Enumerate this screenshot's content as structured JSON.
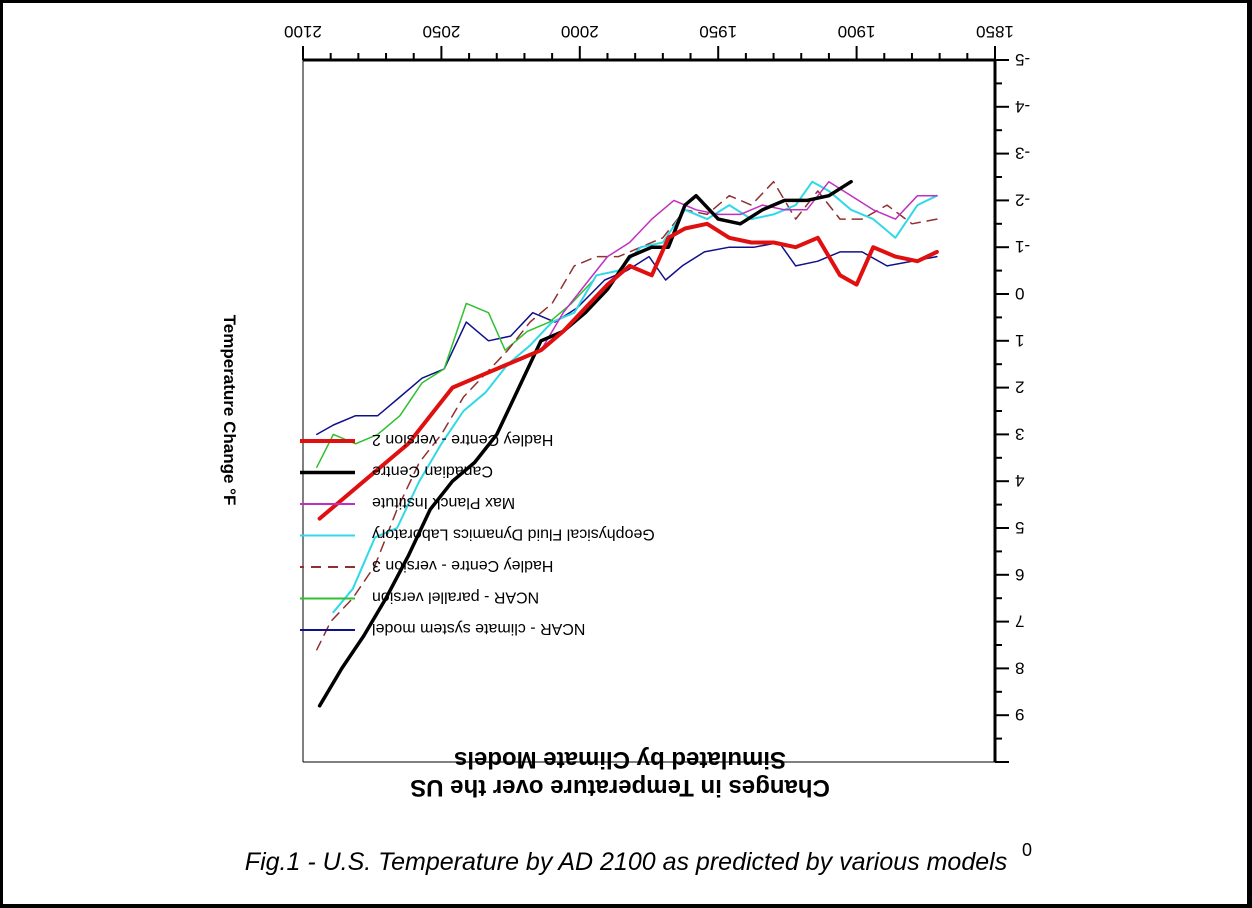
{
  "caption": "Fig.1 - U.S. Temperature by AD 2100 as predicted by various models",
  "page_number": "0",
  "chart_data": {
    "type": "line",
    "title": "Changes in Temperature over the US",
    "subtitle": "Simulated by Climate Models",
    "ylabel": "Temperature Change °F",
    "xlabel": "",
    "xlim": [
      1850,
      2100
    ],
    "ylim": [
      -5,
      10
    ],
    "x_ticks": [
      "1850",
      "1900",
      "1950",
      "2000",
      "2050",
      "2100"
    ],
    "y_ticks": [
      "-5",
      "-4",
      "-3",
      "-2",
      "-1",
      "0",
      "1",
      "2",
      "3",
      "4",
      "5",
      "6",
      "7",
      "8",
      "9"
    ],
    "x_tick_values": [
      1850,
      1900,
      1950,
      2000,
      2050,
      2100
    ],
    "y_tick_values": [
      -5,
      -4,
      -3,
      -2,
      -1,
      0,
      1,
      2,
      3,
      4,
      5,
      6,
      7,
      8,
      9
    ],
    "grid": false,
    "legend_position": "lower-left",
    "series": [
      {
        "name": "NCAR - climate system model",
        "color": "#10108a",
        "dash": "",
        "width": 1.5,
        "x": [
          1871,
          1880,
          1889,
          1898,
          1906,
          1914,
          1922,
          1928,
          1937,
          1946,
          1955,
          1963,
          1969,
          1975,
          1983,
          1991,
          2001,
          2009,
          2017,
          2025,
          2033,
          2041,
          2049,
          2057,
          2065,
          2073,
          2081,
          2089,
          2095
        ],
        "y": [
          -0.8,
          -0.7,
          -0.6,
          -0.9,
          -0.9,
          -0.7,
          -0.6,
          -1.1,
          -1.0,
          -1.0,
          -0.9,
          -0.6,
          -0.3,
          -0.8,
          -0.5,
          -0.3,
          0.3,
          0.6,
          0.4,
          0.9,
          1.0,
          0.6,
          1.6,
          1.8,
          2.2,
          2.6,
          2.6,
          2.8,
          3.0
        ]
      },
      {
        "name": "NCAR - parallel version",
        "color": "#30c030",
        "dash": "",
        "width": 1.5,
        "x": [
          1995,
          2003,
          2011,
          2019,
          2027,
          2033,
          2041,
          2049,
          2057,
          2065,
          2073,
          2081,
          2089,
          2095
        ],
        "y": [
          -0.3,
          0.2,
          0.6,
          0.8,
          1.2,
          0.4,
          0.2,
          1.6,
          1.9,
          2.6,
          3.0,
          3.2,
          3.0,
          3.7
        ]
      },
      {
        "name": "Hadley Centre - version 3",
        "color": "#903030",
        "dash": "10,7",
        "width": 1.5,
        "x": [
          1871,
          1880,
          1889,
          1898,
          1906,
          1914,
          1922,
          1930,
          1938,
          1946,
          1954,
          1962,
          1970,
          1978,
          1986,
          1994,
          2002,
          2010,
          2018,
          2026,
          2034,
          2042,
          2050,
          2058,
          2066,
          2074,
          2082,
          2090,
          2095
        ],
        "y": [
          -1.6,
          -1.5,
          -1.9,
          -1.6,
          -1.6,
          -2.2,
          -1.6,
          -2.4,
          -1.9,
          -2.1,
          -1.7,
          -1.8,
          -1.2,
          -1.0,
          -0.8,
          -0.8,
          -0.6,
          0.2,
          0.6,
          1.2,
          1.7,
          2.2,
          3.0,
          3.6,
          4.6,
          5.8,
          6.5,
          7.0,
          7.6
        ]
      },
      {
        "name": "Geophysical Fluid Dynamics Laboratory",
        "color": "#30d8e8",
        "dash": "",
        "width": 2,
        "x": [
          1871,
          1878,
          1886,
          1894,
          1902,
          1910,
          1916,
          1922,
          1930,
          1938,
          1946,
          1954,
          1962,
          1970,
          1978,
          1986,
          1994,
          2002,
          2010,
          2018,
          2026,
          2034,
          2042,
          2050,
          2058,
          2066,
          2074,
          2082,
          2089
        ],
        "y": [
          -2.1,
          -1.9,
          -1.2,
          -1.6,
          -1.8,
          -2.2,
          -2.4,
          -1.9,
          -1.7,
          -1.6,
          -1.9,
          -1.6,
          -1.8,
          -1.1,
          -1.0,
          -0.5,
          -0.4,
          0.4,
          0.6,
          1.1,
          1.5,
          2.1,
          2.5,
          3.2,
          4.0,
          5.0,
          5.2,
          6.3,
          6.8
        ]
      },
      {
        "name": "Max Planck Institute",
        "color": "#c030c0",
        "dash": "",
        "width": 1.5,
        "x": [
          1871,
          1878,
          1886,
          1894,
          1902,
          1910,
          1918,
          1926,
          1934,
          1942,
          1950,
          1958,
          1966,
          1974,
          1982,
          1990,
          1998,
          2006,
          2014,
          2022,
          2030
        ],
        "y": [
          -2.1,
          -2.1,
          -1.6,
          -1.8,
          -2.1,
          -2.4,
          -1.8,
          -1.8,
          -1.9,
          -1.7,
          -1.7,
          -1.8,
          -2.0,
          -1.6,
          -1.1,
          -0.8,
          -0.2,
          0.4,
          1.2,
          1.4,
          1.6
        ]
      },
      {
        "name": "Canadian Centre",
        "color": "#000000",
        "dash": "",
        "width": 3.5,
        "x": [
          1902,
          1910,
          1918,
          1926,
          1934,
          1942,
          1950,
          1958,
          1962,
          1968,
          1974,
          1982,
          1990,
          1998,
          2006,
          2014,
          2022,
          2030,
          2038,
          2046,
          2054,
          2062,
          2070,
          2078,
          2086,
          2094
        ],
        "y": [
          -2.4,
          -2.1,
          -2.0,
          -2.0,
          -1.8,
          -1.5,
          -1.6,
          -2.1,
          -1.9,
          -1.0,
          -1.0,
          -0.8,
          -0.1,
          0.4,
          0.8,
          1.0,
          2.0,
          3.0,
          3.6,
          4.0,
          4.6,
          5.6,
          6.5,
          7.3,
          8.0,
          8.8
        ]
      },
      {
        "name": "Hadley Centre - version 2",
        "color": "#e01010",
        "dash": "",
        "width": 4,
        "x": [
          1871,
          1878,
          1886,
          1894,
          1900,
          1906,
          1914,
          1922,
          1930,
          1938,
          1946,
          1954,
          1962,
          1968,
          1974,
          1982,
          1990,
          1998,
          2006,
          2014,
          2022,
          2030,
          2038,
          2046,
          2054,
          2062,
          2070,
          2078,
          2086,
          2094
        ],
        "y": [
          -0.9,
          -0.7,
          -0.8,
          -1.0,
          -0.2,
          -0.4,
          -1.2,
          -1.0,
          -1.1,
          -1.1,
          -1.2,
          -1.5,
          -1.4,
          -1.2,
          -0.4,
          -0.6,
          -0.2,
          0.3,
          0.8,
          1.2,
          1.4,
          1.6,
          1.8,
          2.0,
          2.6,
          3.2,
          3.6,
          4.0,
          4.4,
          4.8
        ]
      }
    ]
  }
}
